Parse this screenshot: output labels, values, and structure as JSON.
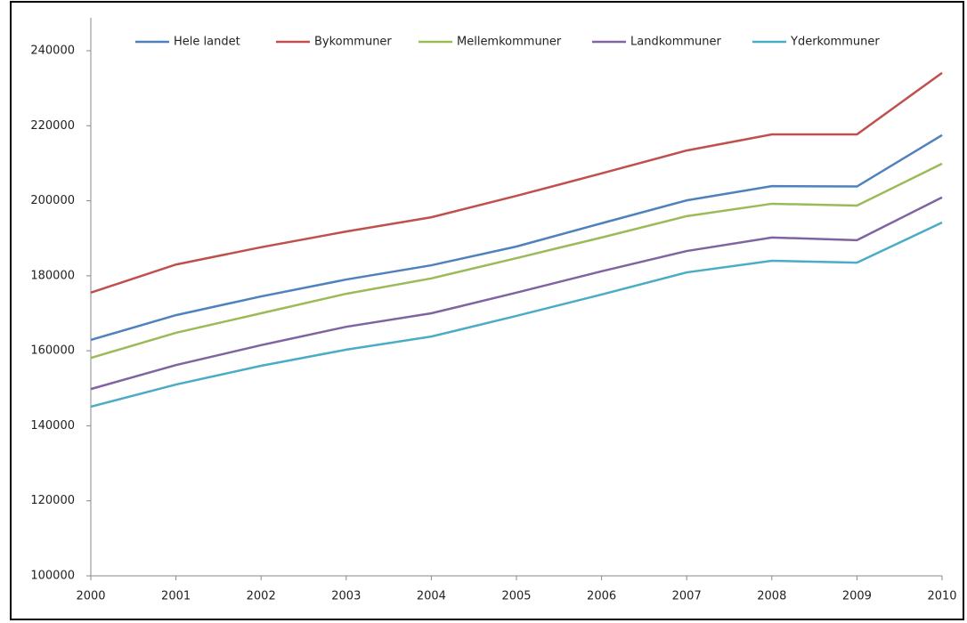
{
  "chart_data": {
    "type": "line",
    "categories": [
      "2000",
      "2001",
      "2002",
      "2003",
      "2004",
      "2005",
      "2006",
      "2007",
      "2008",
      "2009",
      "2010"
    ],
    "series": [
      {
        "name": "Hele landet",
        "color": "#4f81bd",
        "values": [
          162900,
          169500,
          174500,
          179000,
          182800,
          187800,
          194000,
          200100,
          203900,
          203800,
          217500
        ]
      },
      {
        "name": "Bykommuner",
        "color": "#c0504d",
        "values": [
          175500,
          183000,
          187600,
          191800,
          195600,
          201300,
          207300,
          213400,
          217700,
          217700,
          234100
        ]
      },
      {
        "name": "Mellemkommuner",
        "color": "#9bbb59",
        "values": [
          158100,
          164800,
          170000,
          175200,
          179300,
          184700,
          190200,
          195900,
          199200,
          198700,
          209900
        ]
      },
      {
        "name": "Landkommuner",
        "color": "#8064a2",
        "values": [
          149800,
          156200,
          161500,
          166400,
          170000,
          175500,
          181200,
          186600,
          190200,
          189500,
          200900
        ]
      },
      {
        "name": "Yderkommuner",
        "color": "#4bacc6",
        "values": [
          145100,
          151000,
          156000,
          160300,
          163800,
          169300,
          175000,
          180900,
          184000,
          183500,
          194200
        ]
      }
    ],
    "ylim": [
      100000,
      240000
    ],
    "yticks": [
      100000,
      120000,
      140000,
      160000,
      180000,
      200000,
      220000,
      240000
    ],
    "grid": false,
    "legend": "top"
  }
}
